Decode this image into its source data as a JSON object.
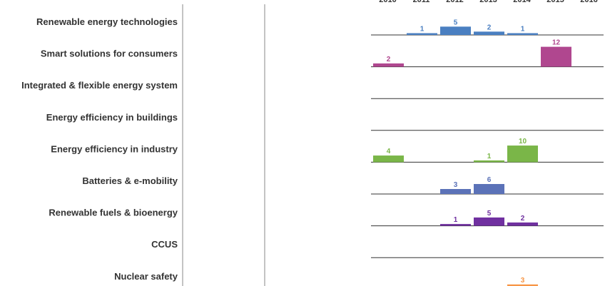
{
  "chart_data": {
    "type": "bar",
    "title": "",
    "xlabel": "",
    "ylabel": "",
    "x": [
      "2010",
      "2011",
      "2012",
      "2013",
      "2014",
      "2015",
      "2016"
    ],
    "series": [
      {
        "name": "Renewable energy technologies",
        "color": "#4a7fc1",
        "values": [
          null,
          1,
          5,
          2,
          1,
          null,
          null
        ]
      },
      {
        "name": "Smart solutions for consumers",
        "color": "#b0478f",
        "values": [
          2,
          null,
          null,
          null,
          null,
          12,
          null
        ]
      },
      {
        "name": "Integrated & flexible energy system",
        "color": "#999999",
        "values": [
          null,
          null,
          null,
          null,
          null,
          null,
          null
        ]
      },
      {
        "name": "Energy efficiency in buildings",
        "color": "#999999",
        "values": [
          null,
          null,
          null,
          null,
          null,
          null,
          null
        ]
      },
      {
        "name": "Energy efficiency in industry",
        "color": "#7ab648",
        "values": [
          4,
          null,
          null,
          1,
          10,
          null,
          null
        ]
      },
      {
        "name": "Batteries & e-mobility",
        "color": "#5b72b8",
        "values": [
          null,
          null,
          3,
          6,
          null,
          null,
          null
        ]
      },
      {
        "name": "Renewable fuels & bioenergy",
        "color": "#7030a0",
        "values": [
          null,
          null,
          1,
          5,
          2,
          null,
          null
        ]
      },
      {
        "name": "CCUS",
        "color": "#999999",
        "values": [
          null,
          null,
          null,
          null,
          null,
          null,
          null
        ]
      },
      {
        "name": "Nuclear safety",
        "color": "#f79646",
        "values": [
          null,
          null,
          null,
          null,
          3,
          null,
          null
        ]
      }
    ],
    "ylim": [
      0,
      12
    ],
    "grid": false,
    "legend": "none"
  }
}
